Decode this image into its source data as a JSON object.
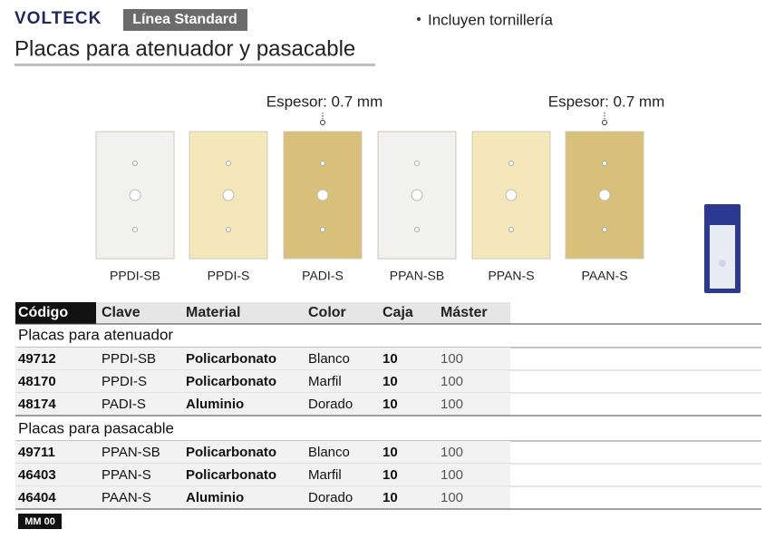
{
  "header": {
    "brand": "VOLTECK",
    "badge": "Línea Standard",
    "title": "Placas para atenuador y pasacable",
    "note": "Incluyen tornillería"
  },
  "products": [
    {
      "label": "PPDI-SB",
      "color": "#f1f1f0"
    },
    {
      "label": "PPDI-S",
      "color": "#f4e7b9"
    },
    {
      "label": "PADI-S",
      "color": "#d8c07a",
      "thickness": "Espesor: 0.7 mm"
    },
    {
      "label": "PPAN-SB",
      "color": "#f1f1f0"
    },
    {
      "label": "PPAN-S",
      "color": "#f4e7b9"
    },
    {
      "label": "PAAN-S",
      "color": "#d8c07a",
      "thickness": "Espesor: 0.7 mm"
    }
  ],
  "table": {
    "headers": [
      "Código",
      "Clave",
      "Material",
      "Color",
      "Caja",
      "Máster"
    ],
    "sections": [
      {
        "title": "Placas para atenuador",
        "rows": [
          [
            "49712",
            "PPDI-SB",
            "Policarbonato",
            "Blanco",
            "10",
            "100"
          ],
          [
            "48170",
            "PPDI-S",
            "Policarbonato",
            "Marfil",
            "10",
            "100"
          ],
          [
            "48174",
            "PADI-S",
            "Aluminio",
            "Dorado",
            "10",
            "100"
          ]
        ]
      },
      {
        "title": "Placas para pasacable",
        "rows": [
          [
            "49711",
            "PPAN-SB",
            "Policarbonato",
            "Blanco",
            "10",
            "100"
          ],
          [
            "46403",
            "PPAN-S",
            "Policarbonato",
            "Marfil",
            "10",
            "100"
          ],
          [
            "46404",
            "PAAN-S",
            "Aluminio",
            "Dorado",
            "10",
            "100"
          ]
        ]
      }
    ]
  },
  "footer": {
    "code": "MM 00"
  }
}
